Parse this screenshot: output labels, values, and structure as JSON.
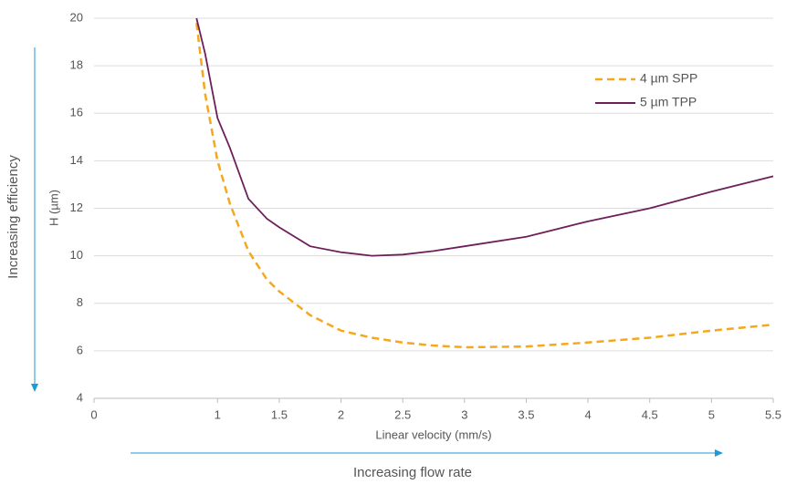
{
  "chart_data": {
    "type": "line",
    "x_label": "Linear velocity (mm/s)",
    "y_label": "H (µm)",
    "annotations": [
      "Increasing efficiency",
      "Increasing flow rate"
    ],
    "x": [
      0.83,
      0.9,
      1,
      1.1,
      1.25,
      1.4,
      1.5,
      1.75,
      2,
      2.25,
      2.5,
      2.75,
      3,
      3.5,
      4,
      4.5,
      5,
      5.5
    ],
    "series": [
      {
        "name": "4 µm SPP",
        "color": "#f5a81c",
        "line_style": "dashed",
        "values": [
          19.8,
          16.8,
          14.0,
          12.2,
          10.2,
          9.0,
          8.5,
          7.5,
          6.85,
          6.55,
          6.35,
          6.22,
          6.15,
          6.18,
          6.35,
          6.55,
          6.85,
          7.1
        ]
      },
      {
        "name": "5 µm TPP",
        "color": "#6d1f5a",
        "line_style": "solid",
        "values": [
          20.0,
          18.5,
          15.8,
          14.55,
          12.4,
          11.56,
          11.2,
          10.4,
          10.15,
          10.0,
          10.05,
          10.2,
          10.4,
          10.8,
          11.45,
          12.0,
          12.7,
          13.35
        ]
      }
    ],
    "xlim": [
      0,
      5.5
    ],
    "xticks": [
      0,
      1,
      1.5,
      2,
      2.5,
      3,
      3.5,
      4,
      4.5,
      5,
      5.5
    ],
    "ylim": [
      4,
      20
    ],
    "yticks": [
      4,
      6,
      8,
      10,
      12,
      14,
      16,
      18,
      20
    ],
    "grid": true,
    "legend": "upper right",
    "annotation_color": "#1b9bd7"
  }
}
